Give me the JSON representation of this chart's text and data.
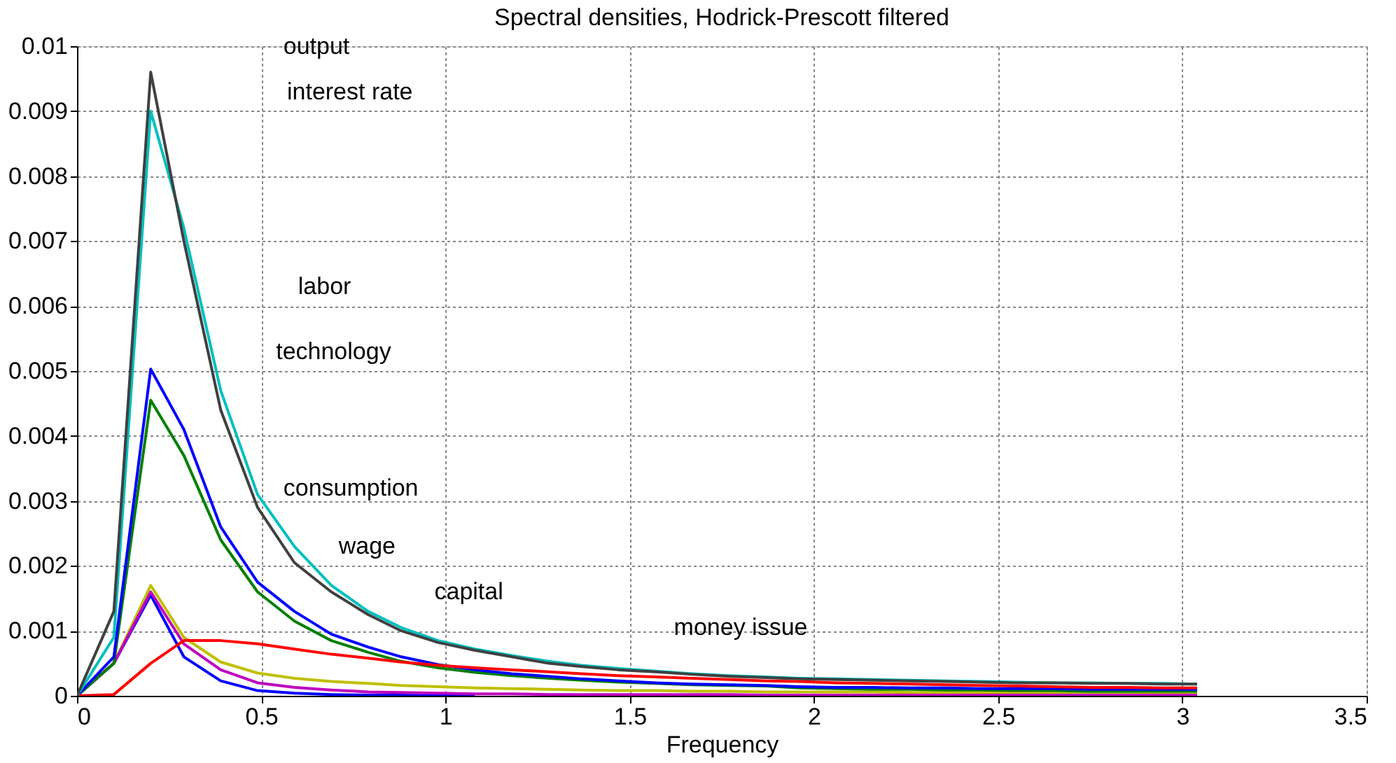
{
  "chart_data": {
    "type": "line",
    "title": "Spectral densities, Hodrick-Prescott filtered",
    "xlabel": "Frequency",
    "x": [
      0,
      0.1,
      0.2,
      0.29,
      0.39,
      0.49,
      0.59,
      0.69,
      0.79,
      0.88,
      0.98,
      1.08,
      1.18,
      1.28,
      1.37,
      1.47,
      1.57,
      1.67,
      1.77,
      1.87,
      1.96,
      2.06,
      2.16,
      2.26,
      2.36,
      2.45,
      2.55,
      2.65,
      2.75,
      2.85,
      2.95,
      3.04
    ],
    "series": [
      {
        "color": "#0000ff",
        "values": [
          0,
          0.0005,
          0.00155,
          0.0006,
          0.00023,
          8e-05,
          4e-05,
          2e-05,
          1e-05,
          1e-05,
          0,
          0,
          null,
          null,
          null,
          null,
          null,
          null,
          null,
          null,
          null,
          null,
          null,
          null,
          null,
          null,
          null,
          null,
          null,
          null,
          null,
          null
        ]
      },
      {
        "color": "#bfbf00",
        "values": [
          0,
          0.0005,
          0.0017,
          0.0009,
          0.00052,
          0.00035,
          0.00027,
          0.00022,
          0.00019,
          0.00016,
          0.00014,
          0.00012,
          0.00011,
          0.0001,
          9e-05,
          8e-05,
          8e-05,
          7e-05,
          7e-05,
          6e-05,
          6e-05,
          6e-05,
          6e-05,
          5e-05,
          5e-05,
          5e-05,
          5e-05,
          5e-05,
          4e-05,
          4e-05,
          4e-05,
          4e-05
        ]
      },
      {
        "color": "#bf00bf",
        "values": [
          0,
          0.0005,
          0.0016,
          0.0008,
          0.0004,
          0.0002,
          0.00013,
          9e-05,
          6e-05,
          5e-05,
          4e-05,
          3e-05,
          3e-05,
          2e-05,
          2e-05,
          2e-05,
          2e-05,
          2e-05,
          2e-05,
          1e-05,
          1e-05,
          1e-05,
          1e-05,
          1e-05,
          1e-05,
          1e-05,
          1e-05,
          1e-05,
          1e-05,
          1e-05,
          1e-05,
          1e-05
        ]
      },
      {
        "color": "#008000",
        "values": [
          0,
          0.0005,
          0.00455,
          0.0037,
          0.0024,
          0.0016,
          0.00115,
          0.00085,
          0.00067,
          0.00053,
          0.00043,
          0.00036,
          0.00031,
          0.00027,
          0.00024,
          0.00021,
          0.00019,
          0.00017,
          0.00016,
          0.00015,
          0.00012,
          0.00011,
          0.0001,
          0.0001,
          9e-05,
          9e-05,
          8e-05,
          8e-05,
          7e-05,
          7e-05,
          7e-05,
          7e-05
        ]
      },
      {
        "color": "#0000ff",
        "values": [
          0,
          0.0006,
          0.00503,
          0.0041,
          0.0026,
          0.00175,
          0.0013,
          0.00095,
          0.00075,
          0.0006,
          0.00048,
          0.0004,
          0.00034,
          0.0003,
          0.00026,
          0.00023,
          0.0002,
          0.00018,
          0.00017,
          0.00016,
          0.00014,
          0.00013,
          0.00013,
          0.00012,
          0.00012,
          0.00011,
          0.00011,
          0.00011,
          0.0001,
          0.0001,
          0.0001,
          0.0001
        ]
      },
      {
        "color": "#ff0000",
        "values": [
          0,
          2e-05,
          0.0005,
          0.00085,
          0.00085,
          0.0008,
          0.00072,
          0.00064,
          0.00058,
          0.00052,
          0.00047,
          0.00043,
          0.0004,
          0.00037,
          0.00034,
          0.00031,
          0.00029,
          0.00027,
          0.00025,
          0.00023,
          0.00022,
          0.0002,
          0.00019,
          0.00018,
          0.00017,
          0.00016,
          0.00015,
          0.00014,
          0.00013,
          0.00013,
          0.00012,
          0.00012
        ]
      },
      {
        "color": "#00bfbf",
        "values": [
          0,
          0.0009,
          0.009,
          0.0072,
          0.0047,
          0.0031,
          0.0023,
          0.0017,
          0.0013,
          0.00105,
          0.00085,
          0.00072,
          0.00062,
          0.00053,
          0.00047,
          0.00042,
          0.00038,
          0.00034,
          0.00031,
          0.00029,
          0.00027,
          0.00026,
          0.00025,
          0.00024,
          0.00023,
          0.00022,
          0.00021,
          0.0002,
          0.0002,
          0.00019,
          0.00019,
          0.00018
        ]
      },
      {
        "color": "#404040",
        "values": [
          0,
          0.0013,
          0.0096,
          0.007,
          0.0044,
          0.0029,
          0.00205,
          0.0016,
          0.00125,
          0.001,
          0.00082,
          0.0007,
          0.0006,
          0.0005,
          0.00045,
          0.0004,
          0.00037,
          0.00033,
          0.0003,
          0.00028,
          0.00026,
          0.00025,
          0.00024,
          0.00023,
          0.00022,
          0.00021,
          0.0002,
          0.0002,
          0.00019,
          0.00019,
          0.00018,
          0.00018
        ]
      }
    ],
    "xlim": [
      0,
      3.5
    ],
    "xticks": [
      0,
      0.5,
      1,
      1.5,
      2,
      2.5,
      3,
      3.5
    ],
    "ylim": [
      0,
      0.01
    ],
    "yticks": [
      0,
      0.001,
      0.002,
      0.003,
      0.004,
      0.005,
      0.006,
      0.007,
      0.008,
      0.009,
      0.01
    ],
    "grid": true,
    "legend": false,
    "line_style": "solid",
    "marker": "none",
    "annotations": [
      "output",
      "interest rate",
      "labor",
      "technology",
      "consumption",
      "wage",
      "capital",
      "money issue"
    ]
  }
}
